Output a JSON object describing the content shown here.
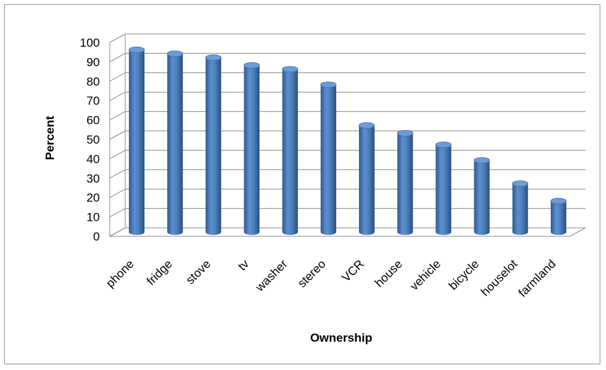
{
  "chart_data": {
    "type": "bar",
    "title": "",
    "xlabel": "Ownership",
    "ylabel": "Percent",
    "categories": [
      "phone",
      "fridge",
      "stove",
      "tv",
      "washer",
      "stereo",
      "VCR",
      "house",
      "vehicle",
      "bicycle",
      "houselot",
      "farmland"
    ],
    "values": [
      94,
      92,
      90,
      86,
      84,
      76,
      55,
      51,
      45,
      37,
      25,
      16
    ],
    "ylim": [
      0,
      100
    ],
    "yticks": [
      0,
      10,
      20,
      30,
      40,
      50,
      60,
      70,
      80,
      90,
      100
    ],
    "grid": true,
    "legend": "none",
    "bar_color": "#4f81bd",
    "style": "3d-cylinder"
  }
}
